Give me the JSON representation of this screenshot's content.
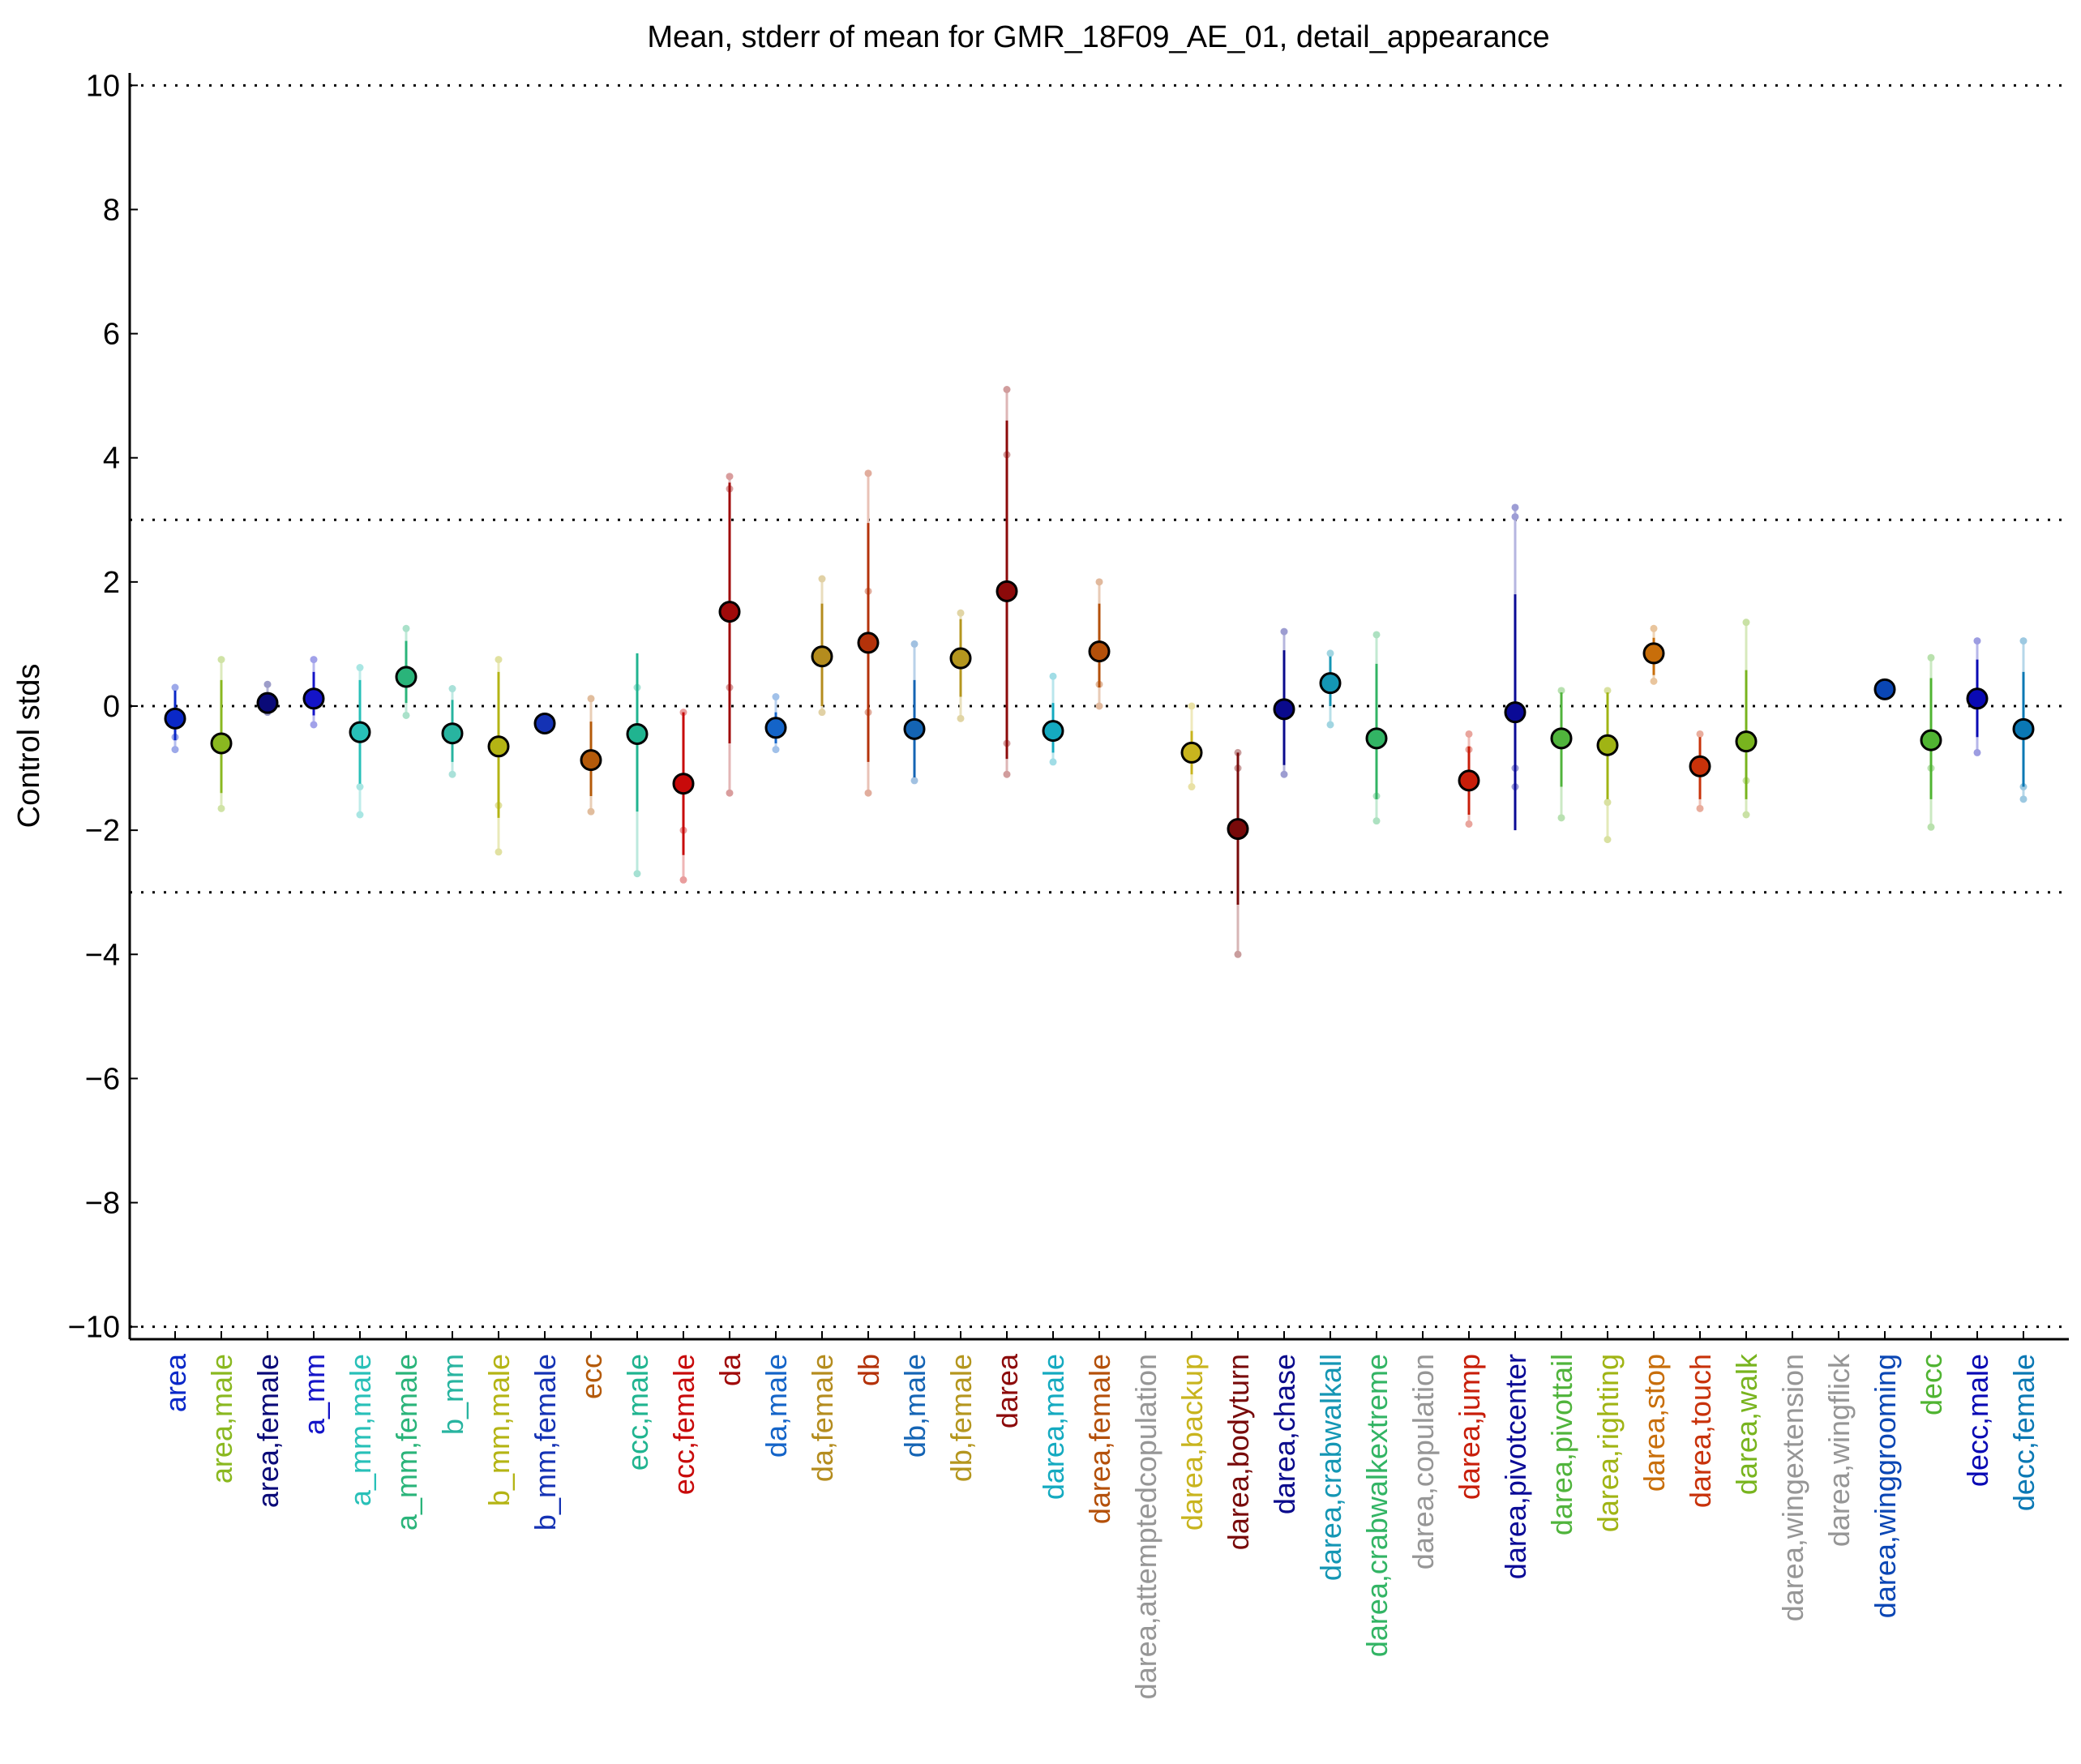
{
  "chart_data": {
    "type": "scatter",
    "title": "Mean, stderr of mean for GMR_18F09_AE_01, detail_appearance",
    "xlabel": "",
    "ylabel": "Control stds",
    "ylim": [
      -10.2,
      10.2
    ],
    "yticks": [
      10,
      8,
      6,
      4,
      2,
      0,
      -2,
      -4,
      -6,
      -8,
      -10
    ],
    "ytick_labels": [
      "10",
      "8",
      "6",
      "4",
      "2",
      "0",
      "−2",
      "−4",
      "−6",
      "−8",
      "−10"
    ],
    "reference_lines": [
      10,
      3,
      0,
      -3,
      -10
    ],
    "grid": false,
    "legend": "none",
    "categories": [
      "area",
      "area,male",
      "area,female",
      "a_mm",
      "a_mm,male",
      "a_mm,female",
      "b_mm",
      "b_mm,male",
      "b_mm,female",
      "ecc",
      "ecc,male",
      "ecc,female",
      "da",
      "da,male",
      "da,female",
      "db",
      "db,male",
      "db,female",
      "darea",
      "darea,male",
      "darea,female",
      "darea,attemptedcopulation",
      "darea,backup",
      "darea,bodyturn",
      "darea,chase",
      "darea,crabwalkall",
      "darea,crabwalkextreme",
      "darea,copulation",
      "darea,jump",
      "darea,pivotcenter",
      "darea,pivottail",
      "darea,righting",
      "darea,stop",
      "darea,touch",
      "darea,walk",
      "darea,wingextension",
      "darea,wingflick",
      "darea,winggrooming",
      "decc",
      "decc,male",
      "decc,female"
    ],
    "colors": [
      "#0a28c8",
      "#8ab820",
      "#0a0a78",
      "#1414c8",
      "#28c0b8",
      "#2ab47a",
      "#28b4a0",
      "#b4b414",
      "#1432b4",
      "#b45a0a",
      "#20b490",
      "#c80a0a",
      "#a00a0a",
      "#1464c8",
      "#b48c1e",
      "#b4320a",
      "#1464b4",
      "#b4961e",
      "#8c0a0a",
      "#14aac0",
      "#b4500a",
      "#969696",
      "#c8b41e",
      "#780a0a",
      "#0a0a8c",
      "#1496b4",
      "#32b464",
      "#969696",
      "#c81e0a",
      "#0a0a96",
      "#50b43c",
      "#a0b414",
      "#c86e0a",
      "#c8320a",
      "#78b41e",
      "#969696",
      "#969696",
      "#0a46b4",
      "#50b432",
      "#0a0ab4",
      "#0a78b4"
    ],
    "means": [
      -0.2,
      -0.6,
      0.05,
      0.12,
      -0.42,
      0.47,
      -0.44,
      -0.65,
      -0.28,
      -0.87,
      -0.45,
      -1.25,
      1.52,
      -0.35,
      0.8,
      1.02,
      -0.37,
      0.77,
      1.85,
      -0.4,
      0.88,
      null,
      -0.75,
      -1.98,
      -0.05,
      0.37,
      -0.52,
      null,
      -1.2,
      -0.1,
      -0.52,
      -0.63,
      0.85,
      -0.97,
      -0.57,
      null,
      null,
      0.27,
      -0.55,
      0.12,
      -0.37
    ],
    "stderr_low": [
      -0.55,
      -1.4,
      -0.05,
      -0.15,
      -1.25,
      0.05,
      -0.9,
      -1.8,
      -0.35,
      -1.45,
      -1.7,
      -2.4,
      -0.6,
      -0.6,
      0.0,
      -0.9,
      -1.15,
      0.15,
      -0.85,
      -0.75,
      0.3,
      null,
      -1.1,
      -3.2,
      -0.95,
      0.0,
      -1.5,
      null,
      -1.75,
      -2.0,
      -1.3,
      -1.5,
      0.5,
      -1.5,
      -1.5,
      null,
      null,
      0.17,
      -1.5,
      -0.5,
      -1.3
    ],
    "stderr_high": [
      0.25,
      0.42,
      0.2,
      0.55,
      0.42,
      1.05,
      0.1,
      0.55,
      -0.2,
      -0.25,
      0.85,
      -0.1,
      3.6,
      -0.1,
      1.65,
      2.95,
      0.42,
      1.4,
      4.6,
      0.05,
      1.65,
      null,
      -0.4,
      -0.75,
      0.9,
      0.8,
      0.68,
      null,
      -0.65,
      1.8,
      0.22,
      0.22,
      1.1,
      -0.5,
      0.58,
      null,
      null,
      0.37,
      0.45,
      0.75,
      0.55
    ],
    "individual_values": [
      [
        -0.7,
        0.3,
        -0.5
      ],
      [
        -1.65,
        0.75
      ],
      [
        -0.1,
        0.35,
        0.0
      ],
      [
        -0.3,
        0.75
      ],
      [
        -1.75,
        0.62,
        -1.3
      ],
      [
        -0.15,
        1.25,
        0.6
      ],
      [
        -1.1,
        0.28
      ],
      [
        -2.35,
        0.75,
        -1.6
      ],
      [
        -0.3,
        -0.22
      ],
      [
        -1.7,
        0.12
      ],
      [
        -2.7,
        0.3
      ],
      [
        -2.8,
        -0.1,
        -2.0
      ],
      [
        -1.4,
        3.7,
        3.5,
        0.3
      ],
      [
        -0.7,
        0.15
      ],
      [
        -0.1,
        2.05
      ],
      [
        -1.4,
        3.75,
        1.85,
        -0.1
      ],
      [
        -1.2,
        1.0
      ],
      [
        -0.2,
        1.5
      ],
      [
        -1.1,
        5.1,
        4.05,
        -0.6
      ],
      [
        -0.9,
        0.48
      ],
      [
        0.0,
        2.0,
        0.35
      ],
      [],
      [
        -1.3,
        0.0
      ],
      [
        -4.0,
        -0.75,
        -1.0
      ],
      [
        -1.1,
        1.2
      ],
      [
        -0.3,
        0.85
      ],
      [
        -1.85,
        1.15,
        -1.45
      ],
      [],
      [
        -1.9,
        -0.45,
        -0.7
      ],
      [
        -1.3,
        3.2,
        -1.0,
        3.05
      ],
      [
        -1.8,
        0.25
      ],
      [
        -2.15,
        0.25,
        -1.55
      ],
      [
        0.4,
        1.25
      ],
      [
        -1.65,
        -0.45
      ],
      [
        -1.75,
        1.35,
        -1.2
      ],
      [],
      [],
      [
        0.2,
        0.35
      ],
      [
        -1.95,
        0.78,
        -1.0
      ],
      [
        -0.75,
        1.05
      ],
      [
        -1.5,
        1.05,
        -1.3
      ]
    ]
  }
}
